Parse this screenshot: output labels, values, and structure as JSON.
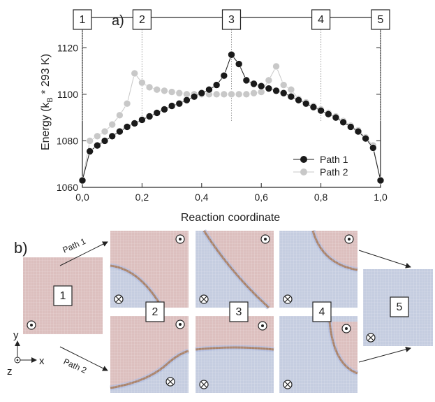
{
  "chart_data": {
    "type": "line",
    "panel_label": "a)",
    "x_label": "Reaction coordinate",
    "y_label": [
      "Energy (k",
      "B",
      " * 293 K)"
    ],
    "x": [
      0,
      0.025,
      0.05,
      0.075,
      0.1,
      0.125,
      0.15,
      0.175,
      0.2,
      0.225,
      0.25,
      0.275,
      0.3,
      0.325,
      0.35,
      0.375,
      0.4,
      0.425,
      0.45,
      0.475,
      0.5,
      0.525,
      0.55,
      0.575,
      0.6,
      0.625,
      0.65,
      0.675,
      0.7,
      0.725,
      0.75,
      0.775,
      0.8,
      0.825,
      0.85,
      0.875,
      0.9,
      0.925,
      0.95,
      0.975,
      1
    ],
    "series": [
      {
        "name": "Path 1",
        "color": "#1a1a1a",
        "values": [
          1063,
          1075.5,
          1078,
          1080,
          1082,
          1084,
          1086,
          1087.5,
          1089,
          1090.5,
          1092,
          1093.5,
          1095,
          1096,
          1097.5,
          1099,
          1100.5,
          1102,
          1104,
          1108,
          1117,
          1113,
          1106,
          1104.5,
          1103.5,
          1102.5,
          1101.5,
          1100.5,
          1099,
          1097.5,
          1096,
          1094.5,
          1093,
          1091.5,
          1090,
          1088,
          1086,
          1084,
          1081,
          1077,
          1063
        ]
      },
      {
        "name": "Path 2",
        "color": "#c8c8c8",
        "values": [
          1063,
          1080,
          1082,
          1084,
          1087,
          1091,
          1096,
          1109,
          1105,
          1103,
          1102,
          1101.5,
          1101,
          1100.5,
          1100,
          1100,
          1100,
          1100,
          1100,
          1100,
          1100,
          1100,
          1100,
          1100.5,
          1101,
          1106,
          1112,
          1104,
          1102,
          1098,
          1096.5,
          1095,
          1093.5,
          1092,
          1090.5,
          1088.5,
          1086.5,
          1084.5,
          1081.5,
          1078,
          1063
        ]
      }
    ],
    "xlim": [
      0,
      1
    ],
    "xticks": [
      {
        "value": 0,
        "label": "0,0"
      },
      {
        "value": 0.2,
        "label": "0,2"
      },
      {
        "value": 0.4,
        "label": "0,4"
      },
      {
        "value": 0.6,
        "label": "0,6"
      },
      {
        "value": 0.8,
        "label": "0,8"
      },
      {
        "value": 1,
        "label": "1,0"
      }
    ],
    "ylim": [
      1060,
      1133
    ],
    "yticks": [
      1060,
      1080,
      1100,
      1120
    ],
    "markers": [
      {
        "label": "1",
        "x": 0
      },
      {
        "label": "2",
        "x": 0.2
      },
      {
        "label": "3",
        "x": 0.5
      },
      {
        "label": "4",
        "x": 0.8
      },
      {
        "label": "5",
        "x": 1
      }
    ],
    "legend": "lower right",
    "grid": false
  },
  "panel_b": {
    "label": "b)",
    "states": [
      "1",
      "2",
      "3",
      "4",
      "5"
    ],
    "paths": [
      "Path 1",
      "Path 2"
    ],
    "axes": [
      "x",
      "y",
      "z"
    ]
  }
}
